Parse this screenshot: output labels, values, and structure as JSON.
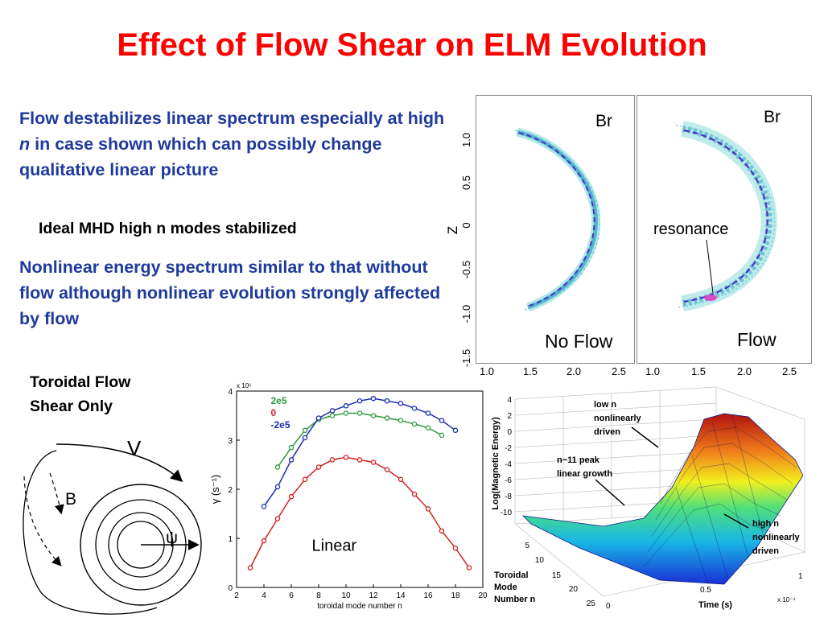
{
  "title": "Effect of Flow Shear on ELM Evolution",
  "para1": {
    "before": "Flow destabilizes linear spectrum especially at high ",
    "italic": "n",
    "after": " in case shown which can possibly change qualitative linear picture"
  },
  "bullet": "Ideal MHD high n modes stabilized",
  "para2": "Nonlinear energy spectrum similar to that without flow although nonlinear evolution strongly affected by flow",
  "shear_label": {
    "line1": "Toroidal Flow",
    "line2": "Shear Only"
  },
  "diagram": {
    "v_label": "V",
    "b_label": "B",
    "psi_label": "ψ"
  },
  "panels": {
    "field_label": "Br",
    "z_axis_label": "Z",
    "y_ticks": [
      "1.0",
      "0.5",
      "0",
      "-0.5",
      "-1.0",
      "-1.5"
    ],
    "x_ticks": [
      "1.0",
      "1.5",
      "2.0",
      "2.5"
    ],
    "left_caption": "No Flow",
    "right_caption": "Flow",
    "resonance_label": "resonance"
  },
  "chart_data": {
    "type": "line",
    "title": "",
    "xlabel": "toroidal mode number n",
    "ylabel": "γ (s⁻¹)",
    "y_scale_label": "x 10⁵",
    "inline_label": "Linear",
    "xlim": [
      2,
      20
    ],
    "ylim": [
      0,
      4
    ],
    "x_ticks": [
      2,
      4,
      6,
      8,
      10,
      12,
      14,
      16,
      18,
      20
    ],
    "y_ticks": [
      0,
      1,
      2,
      3,
      4
    ],
    "series": [
      {
        "name": "2e5",
        "color": "#2e9b3e",
        "x": [
          5,
          6,
          7,
          8,
          9,
          10,
          11,
          12,
          13,
          14,
          15,
          16,
          17
        ],
        "y": [
          2.45,
          2.85,
          3.2,
          3.42,
          3.5,
          3.55,
          3.55,
          3.5,
          3.45,
          3.4,
          3.33,
          3.25,
          3.1
        ]
      },
      {
        "name": "0",
        "color": "#d42020",
        "x": [
          3,
          4,
          5,
          6,
          7,
          8,
          9,
          10,
          11,
          12,
          13,
          14,
          15,
          16,
          17,
          18,
          19
        ],
        "y": [
          0.4,
          0.95,
          1.4,
          1.85,
          2.2,
          2.45,
          2.6,
          2.65,
          2.6,
          2.55,
          2.4,
          2.2,
          1.9,
          1.6,
          1.15,
          0.8,
          0.4
        ]
      },
      {
        "name": "-2e5",
        "color": "#1a2fb0",
        "x": [
          4,
          5,
          6,
          7,
          8,
          9,
          10,
          11,
          12,
          13,
          14,
          15,
          16,
          17,
          18
        ],
        "y": [
          1.65,
          2.05,
          2.6,
          3.05,
          3.45,
          3.6,
          3.7,
          3.8,
          3.85,
          3.8,
          3.75,
          3.65,
          3.55,
          3.4,
          3.2
        ]
      }
    ]
  },
  "surface": {
    "zlabel": "Log(Magnetic Energy)",
    "z_ticks": [
      "4",
      "2",
      "0",
      "-2",
      "-4",
      "-6",
      "-8",
      "-10"
    ],
    "mode_label_lines": [
      "Toroidal",
      "Mode",
      "Number n"
    ],
    "mode_ticks": [
      "5",
      "10",
      "15",
      "20",
      "25"
    ],
    "time_label": "Time (s)",
    "time_ticks": [
      "0",
      "0.5",
      "1"
    ],
    "time_scale": "x 10⁻⁴",
    "annotations": {
      "low_n": [
        "low n",
        "nonlinearly",
        "driven"
      ],
      "peak": [
        "n~11 peak",
        "linear growth"
      ],
      "high_n": [
        "high n",
        "nonlinearly",
        "driven"
      ]
    }
  }
}
